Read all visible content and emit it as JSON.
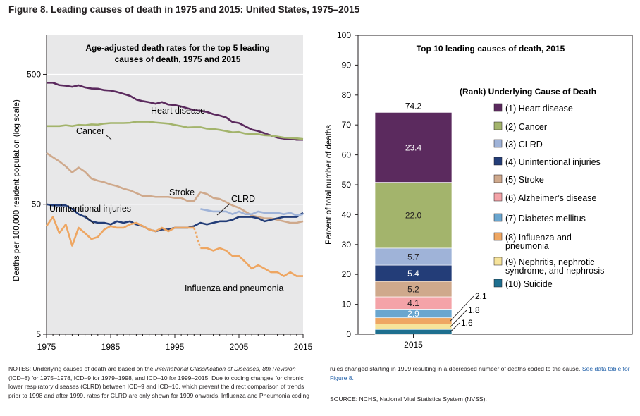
{
  "figure_title": "Figure 8. Leading causes of death in 1975 and 2015: United States, 1975–2015",
  "chart_data": [
    {
      "type": "line",
      "title_line1": "Age-adjusted death rates for the top 5 leading",
      "title_line2": "causes of death, 1975 and 2015",
      "ylabel": "Deaths per 100,000 resident population (log scale)",
      "xlabel": "",
      "log_scale": true,
      "ylim": [
        5,
        1000
      ],
      "y_ticks": [
        "500",
        "50",
        "5"
      ],
      "x_ticks": [
        "1975",
        "1985",
        "1995",
        "2005",
        "2015"
      ],
      "x": [
        1975,
        1976,
        1977,
        1978,
        1979,
        1980,
        1981,
        1982,
        1983,
        1984,
        1985,
        1986,
        1987,
        1988,
        1989,
        1990,
        1991,
        1992,
        1993,
        1994,
        1995,
        1996,
        1997,
        1998,
        1999,
        2000,
        2001,
        2002,
        2003,
        2004,
        2005,
        2006,
        2007,
        2008,
        2009,
        2010,
        2011,
        2012,
        2013,
        2014,
        2015
      ],
      "series": [
        {
          "name": "Heart disease",
          "color": "#5b2a5e",
          "values": [
            431,
            431,
            413,
            409,
            401,
            412,
            397,
            389,
            388,
            378,
            375,
            366,
            354,
            342,
            320,
            311,
            305,
            297,
            306,
            293,
            290,
            283,
            274,
            265,
            262,
            257,
            247,
            241,
            233,
            215,
            211,
            199,
            188,
            183,
            176,
            169,
            163,
            160,
            160,
            157,
            157
          ]
        },
        {
          "name": "Cancer",
          "color": "#a3b46c",
          "values": [
            200,
            200,
            200,
            203,
            200,
            204,
            203,
            206,
            205,
            209,
            211,
            211,
            211,
            212,
            216,
            216,
            216,
            213,
            211,
            209,
            204,
            200,
            195,
            196,
            196,
            191,
            190,
            187,
            183,
            179,
            180,
            175,
            174,
            173,
            170,
            169,
            166,
            163,
            162,
            161,
            159
          ]
        },
        {
          "name": "Stroke",
          "color": "#cfa98c",
          "values": [
            124,
            115,
            107,
            98,
            88,
            96,
            89,
            79,
            76,
            74,
            71,
            69,
            66,
            64,
            61,
            58,
            58,
            57,
            57,
            57,
            56,
            56,
            53,
            53,
            62,
            60,
            56,
            55,
            52,
            49,
            47,
            44,
            41,
            40,
            39,
            39,
            38,
            37,
            36,
            36,
            37
          ]
        },
        {
          "name": "Unintentional injuries",
          "color": "#233d78",
          "values": [
            50,
            49,
            49,
            49,
            46,
            42,
            40,
            37,
            36,
            36,
            35,
            37,
            36,
            37,
            35,
            34,
            32,
            31,
            32,
            32,
            33,
            33,
            33,
            34,
            36,
            35,
            36,
            37,
            37,
            38,
            40,
            40,
            40,
            39,
            37,
            38,
            39,
            40,
            40,
            40,
            43
          ]
        },
        {
          "name": "CLRD",
          "color": "#9fb3d8",
          "values": [
            null,
            null,
            null,
            null,
            null,
            null,
            null,
            null,
            null,
            null,
            null,
            null,
            null,
            null,
            null,
            null,
            null,
            null,
            null,
            null,
            null,
            null,
            null,
            null,
            46,
            45,
            44,
            44,
            44,
            42,
            44,
            42,
            42,
            44,
            43,
            43,
            43,
            42,
            43,
            41,
            42
          ]
        },
        {
          "name": "Influenza and pneumonia",
          "color": "#eea662",
          "values": [
            34,
            40,
            30,
            35,
            24,
            33,
            30,
            27,
            28,
            32,
            34,
            33,
            33,
            35,
            36,
            34,
            32,
            31,
            33,
            31,
            33,
            33,
            33,
            33,
            23,
            23,
            22,
            23,
            22,
            20,
            20,
            18,
            16,
            17,
            16,
            15,
            15,
            14,
            15,
            14,
            14
          ]
        }
      ],
      "influenza_coding_change": {
        "from": 1998,
        "to": 1999,
        "dashed": true
      },
      "labels": {
        "heart": "Heart disease",
        "cancer": "Cancer",
        "stroke": "Stroke",
        "clrd": "CLRD",
        "injuries": "Unintentional injuries",
        "flu": "Influenza and pneumonia"
      }
    },
    {
      "type": "bar",
      "subtype": "stacked",
      "title": "Top 10 leading causes of death, 2015",
      "ylabel": "Percent of total number of deaths",
      "ylim": [
        0,
        100
      ],
      "y_ticks": [
        "0",
        "10",
        "20",
        "30",
        "40",
        "50",
        "60",
        "70",
        "80",
        "90",
        "100"
      ],
      "categories": [
        "2015"
      ],
      "total": "74.2",
      "legend_title": "(Rank) Underlying Cause of Death",
      "segments": [
        {
          "name": "(1) Heart disease",
          "value": 23.4,
          "label": "23.4",
          "color": "#5b2a5e"
        },
        {
          "name": "(2) Cancer",
          "value": 22.0,
          "label": "22.0",
          "color": "#a3b46c"
        },
        {
          "name": "(3) CLRD",
          "value": 5.7,
          "label": "5.7",
          "color": "#9fb3d8"
        },
        {
          "name": "(4) Unintentional injuries",
          "value": 5.4,
          "label": "5.4",
          "color": "#233d78"
        },
        {
          "name": "(5) Stroke",
          "value": 5.2,
          "label": "5.2",
          "color": "#cfa98c"
        },
        {
          "name": "(6) Alzheimer's disease",
          "value": 4.1,
          "label": "4.1",
          "color": "#f4a3a8"
        },
        {
          "name": "(7) Diabetes mellitus",
          "value": 2.9,
          "label": "2.9",
          "color": "#6aa6cf"
        },
        {
          "name": "(8) Influenza and pneumonia",
          "value": 2.1,
          "label": "2.1",
          "color": "#eea662"
        },
        {
          "name": "(9) Nephritis, nephrotic syndrome, and nephrosis",
          "value": 1.8,
          "label": "1.8",
          "color": "#f6e39a"
        },
        {
          "name": "(10) Suicide",
          "value": 1.6,
          "label": "1.6",
          "color": "#1e6f8f"
        }
      ],
      "legend_entries": [
        [
          "(1) Heart disease"
        ],
        [
          "(2) Cancer"
        ],
        [
          "(3) CLRD"
        ],
        [
          "(4) Unintentional injuries"
        ],
        [
          "(5) Stroke"
        ],
        [
          "(6) Alzheimer’s disease"
        ],
        [
          "(7) Diabetes mellitus"
        ],
        [
          "(8) Influenza and",
          "pneumonia"
        ],
        [
          "(9) Nephritis, nephrotic",
          "syndrome, and nephrosis"
        ],
        [
          "(10) Suicide"
        ]
      ]
    }
  ],
  "notes": {
    "notes_prefix": "NOTES: Underlying causes of death are based on the ",
    "icd8_name": "International Classification of Diseases, 8th Revision",
    "notes_rest": " (ICD–8) for 1975–1978, ICD–9 for 1979–1998, and ICD–10 for 1999–2015. Due to coding changes for chronic lower respiratory diseases (CLRD) between ICD–9 and ICD–10, which prevent the direct comparison of trends prior to 1998 and after 1999, rates for CLRD are only shown for 1999 onwards. Influenza and Pneumonia coding",
    "notes_cont": "rules changed starting in 1999 resulting in a decreased number of deaths coded to the cause. ",
    "link_text": "See data table for Figure 8.",
    "source": "SOURCE: NCHS, National Vital Statistics System (NVSS)."
  }
}
